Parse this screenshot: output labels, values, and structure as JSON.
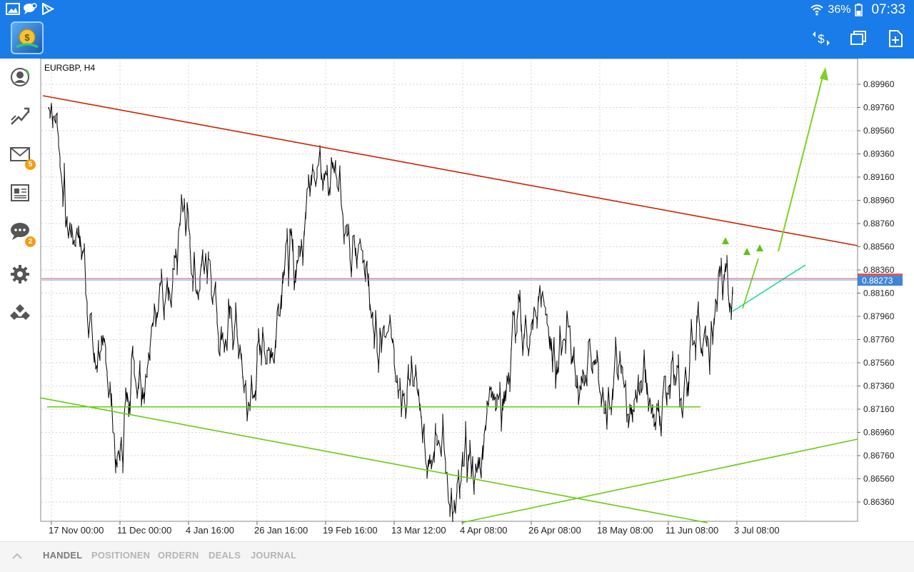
{
  "statusbar": {
    "battery": "36%",
    "time": "07:33"
  },
  "chart": {
    "symbol_label": "EURGBP, H4",
    "current_price": "0.88273",
    "price_ticks": [
      "0.89960",
      "0.89760",
      "0.89560",
      "0.89360",
      "0.89160",
      "0.88960",
      "0.88760",
      "0.88560",
      "0.88360",
      "0.88160",
      "0.87960",
      "0.87760",
      "0.87560",
      "0.87360",
      "0.87160",
      "0.86960",
      "0.86760",
      "0.86560",
      "0.86360"
    ],
    "time_ticks": [
      "17 Nov 00:00",
      "11 Dec 00:00",
      "4 Jan 16:00",
      "26 Jan 16:00",
      "19 Feb 16:00",
      "13 Mar 12:00",
      "4 Apr 08:00",
      "26 Apr 08:00",
      "18 May 08:00",
      "11 Jun 08:00",
      "3 Jul 08:00"
    ],
    "colors": {
      "price_line": "#000000",
      "resistance": "#cc2200",
      "support": "#66cc11",
      "teal": "#1fd6a8",
      "price_tag": "#3f86d8"
    }
  },
  "chart_data": {
    "type": "line",
    "title": "EURGBP, H4",
    "xlabel": "",
    "ylabel": "",
    "ylim": [
      0.8625,
      0.9005
    ],
    "x": [
      "17 Nov 00:00",
      "11 Dec 00:00",
      "4 Jan 16:00",
      "26 Jan 16:00",
      "19 Feb 16:00",
      "13 Mar 12:00",
      "4 Apr 08:00",
      "26 Apr 08:00",
      "18 May 08:00",
      "11 Jun 08:00",
      "3 Jul 08:00"
    ],
    "series": [
      {
        "values": [
          0.8975,
          0.869,
          0.887,
          0.873,
          0.894,
          0.876,
          0.864,
          0.88,
          0.874,
          0.872,
          0.8827
        ]
      }
    ],
    "annotations": {
      "resistance_line": [
        [
          "17 Nov 00:00",
          0.8985
        ],
        [
          "3 Jul 08:00",
          0.8864
        ]
      ],
      "support_level": 0.8718,
      "current_price": 0.88273
    }
  },
  "sidebar": {
    "mail_badge": "5",
    "chat_badge": "2"
  },
  "tabs": [
    {
      "label": "HANDEL",
      "active": true
    },
    {
      "label": "POSITIONEN",
      "active": false
    },
    {
      "label": "ORDERN",
      "active": false
    },
    {
      "label": "DEALS",
      "active": false
    },
    {
      "label": "JOURNAL",
      "active": false
    }
  ]
}
